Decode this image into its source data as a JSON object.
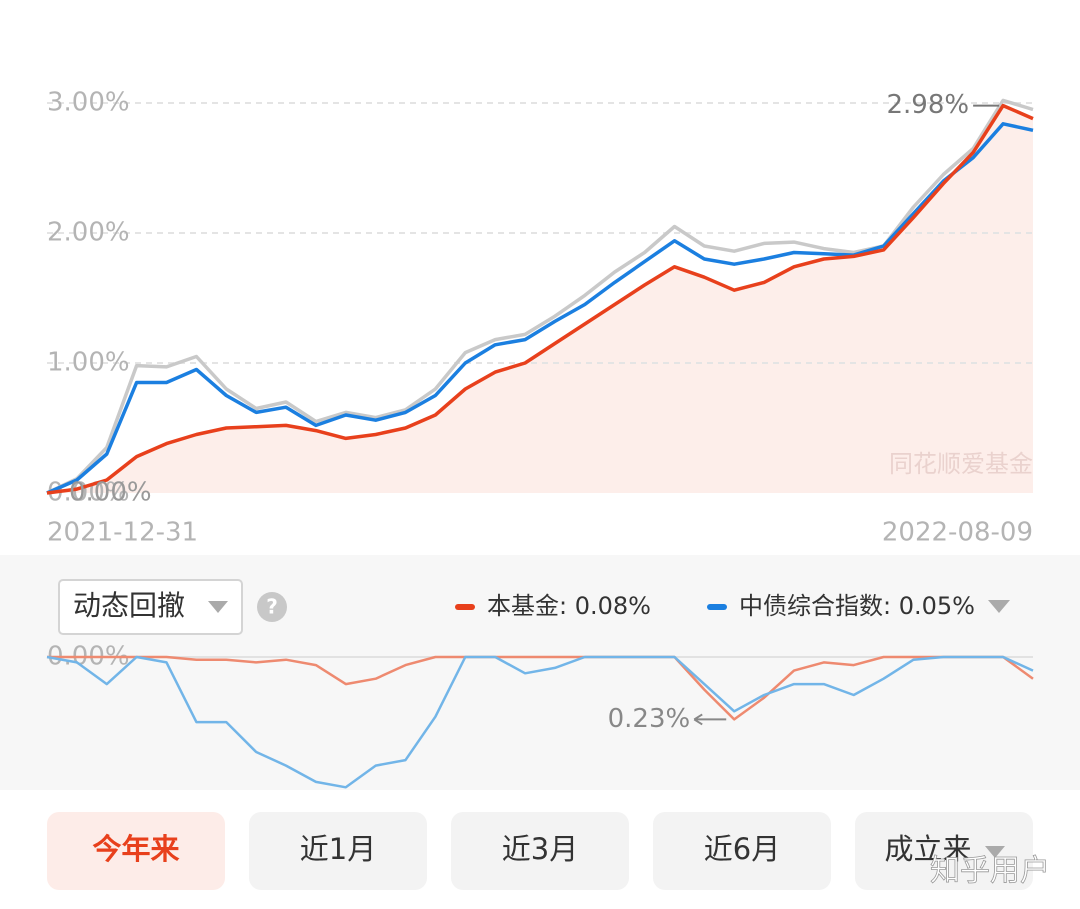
{
  "chart_data": [
    {
      "type": "line",
      "categories": [
        "2021-12-31",
        null,
        null,
        null,
        null,
        null,
        null,
        null,
        null,
        null,
        null,
        null,
        null,
        null,
        null,
        null,
        null,
        null,
        null,
        null,
        null,
        null,
        null,
        null,
        null,
        null,
        null,
        null,
        null,
        null,
        null,
        null,
        null,
        "2022-08-09"
      ],
      "series": [
        {
          "color": "#c9c9c9",
          "values": [
            0,
            0.11,
            0.35,
            0.98,
            0.97,
            1.05,
            0.8,
            0.65,
            0.7,
            0.55,
            0.62,
            0.58,
            0.64,
            0.8,
            1.08,
            1.18,
            1.22,
            1.36,
            1.52,
            1.7,
            1.85,
            2.05,
            1.9,
            1.86,
            1.92,
            1.93,
            1.88,
            1.85,
            1.9,
            2.2,
            2.45,
            2.65,
            3.02,
            2.95
          ]
        },
        {
          "color": "#1b7fe0",
          "values": [
            0,
            0.1,
            0.3,
            0.85,
            0.85,
            0.95,
            0.75,
            0.62,
            0.66,
            0.52,
            0.6,
            0.56,
            0.62,
            0.75,
            1.0,
            1.14,
            1.18,
            1.32,
            1.45,
            1.62,
            1.78,
            1.94,
            1.8,
            1.76,
            1.8,
            1.85,
            1.84,
            1.83,
            1.9,
            2.15,
            2.4,
            2.58,
            2.84,
            2.79
          ]
        },
        {
          "color": "#e8401c",
          "area_color": "#fdeeea",
          "values": [
            0,
            0.03,
            0.1,
            0.28,
            0.38,
            0.45,
            0.5,
            0.51,
            0.52,
            0.48,
            0.42,
            0.45,
            0.5,
            0.6,
            0.8,
            0.93,
            1.0,
            1.15,
            1.3,
            1.45,
            1.6,
            1.74,
            1.66,
            1.56,
            1.62,
            1.74,
            1.8,
            1.82,
            1.87,
            2.12,
            2.38,
            2.62,
            2.98,
            2.88
          ]
        }
      ],
      "ylim": [
        0,
        3.1
      ],
      "yticks": [
        {
          "value": 0,
          "label": "0.00%"
        },
        {
          "value": 1,
          "label": "1.00%"
        },
        {
          "value": 2,
          "label": "2.00%"
        },
        {
          "value": 3,
          "label": "3.00%"
        }
      ],
      "grid": true,
      "annotations": [
        {
          "value": 2.98,
          "label": "2.98%"
        },
        {
          "value": 0,
          "label": "0.00%"
        }
      ],
      "watermark": "同花顺爱基金"
    },
    {
      "type": "line",
      "selector": "动态回撤",
      "help": "?",
      "legend_separator": ": ",
      "series": [
        {
          "name": "本基金",
          "color": "#ee8a70",
          "legend_color": "#e8401c",
          "legend_value": 0.08,
          "legend_label": "0.08%",
          "values": [
            0,
            0,
            0,
            0,
            0,
            0.01,
            0.01,
            0.02,
            0.01,
            0.03,
            0.1,
            0.08,
            0.03,
            0,
            0,
            0,
            0,
            0,
            0,
            0,
            0,
            0,
            0.12,
            0.23,
            0.15,
            0.05,
            0.02,
            0.03,
            0,
            0,
            0,
            0,
            0,
            0.08
          ]
        },
        {
          "name": "中债综合指数",
          "color": "#72b5e8",
          "legend_color": "#1b7fe0",
          "legend_value": 0.05,
          "legend_label": "0.05%",
          "values": [
            0,
            0.02,
            0.1,
            0,
            0.02,
            0.24,
            0.24,
            0.35,
            0.4,
            0.46,
            0.48,
            0.4,
            0.38,
            0.22,
            0,
            0,
            0.06,
            0.04,
            0,
            0,
            0,
            0,
            0.1,
            0.2,
            0.14,
            0.1,
            0.1,
            0.14,
            0.08,
            0.01,
            0,
            0,
            0,
            0.05
          ]
        }
      ],
      "ylim": [
        0,
        0.49
      ],
      "y_reversed": true,
      "yticks": [
        {
          "value": 0,
          "label": "0.00%"
        }
      ],
      "annotations": [
        {
          "value": 0.23,
          "label": "0.23%"
        }
      ]
    }
  ],
  "controls": {
    "periods": [
      "今年来",
      "近1月",
      "近3月",
      "近6月",
      "成立来"
    ],
    "selected": 0
  },
  "footer_watermark": "知乎用户"
}
